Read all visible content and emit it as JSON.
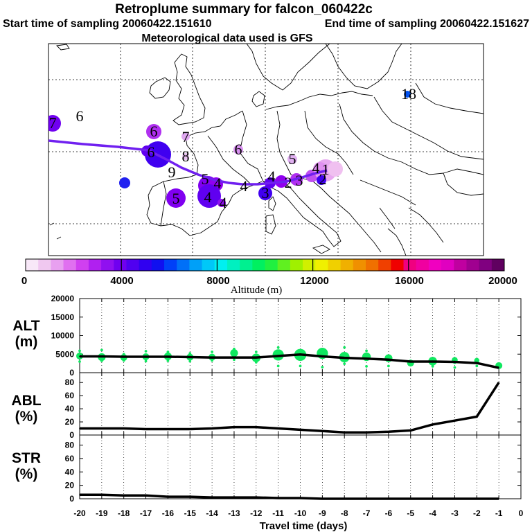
{
  "title": "Retroplume summary for falcon_060422c",
  "start_label": "Start time of sampling 20060422.151610",
  "end_label": "End time of sampling 20060422.151627",
  "met_label": "Meteorological data used is GFS",
  "colorbar": {
    "ticks": [
      "0",
      "4000",
      "8000",
      "12000",
      "16000",
      "20000"
    ],
    "label": "Altitude (m)",
    "colors": [
      "#f8e8f8",
      "#f0c8f0",
      "#e8a0f0",
      "#e070f0",
      "#d040f0",
      "#b020f0",
      "#9010f0",
      "#7000f0",
      "#5000f0",
      "#3000f0",
      "#1010f0",
      "#0040f8",
      "#0070f8",
      "#00a0f8",
      "#00c8f8",
      "#00f0f0",
      "#00f0c0",
      "#00f090",
      "#00f060",
      "#20f040",
      "#60f020",
      "#a0f000",
      "#d0f000",
      "#f0f000",
      "#f0d000",
      "#f0b000",
      "#f09000",
      "#f07000",
      "#f04000",
      "#f00000",
      "#f00080",
      "#f000a0",
      "#f000c0",
      "#e000c0",
      "#c000a0",
      "#a00090",
      "#800080",
      "#600060"
    ]
  },
  "map": {
    "day_labels": [
      {
        "text": "7",
        "color": "#8000f0"
      },
      {
        "text": "6",
        "color": "#9010f0"
      },
      {
        "text": "6",
        "color": "#b030f0"
      },
      {
        "text": "7",
        "color": "#e0a0f0"
      },
      {
        "text": "6",
        "color": "#5000f0"
      },
      {
        "text": "8",
        "color": "#e8c0f0"
      },
      {
        "text": "6",
        "color": "#d890f0"
      },
      {
        "text": "5",
        "color": "#e0a8f0"
      },
      {
        "text": "9",
        "color": "#d8a0f0"
      },
      {
        "text": "5",
        "color": "#b020f0"
      },
      {
        "text": "4",
        "color": "#a010f0"
      },
      {
        "text": "4",
        "color": "#7000f0"
      },
      {
        "text": "4",
        "color": "#a020f0"
      },
      {
        "text": "5",
        "color": "#a010f0"
      },
      {
        "text": "4",
        "color": "#8000f0"
      },
      {
        "text": "3",
        "color": "#5000f0"
      },
      {
        "text": "4",
        "color": "#7000f0"
      },
      {
        "text": "2",
        "color": "#c040f0"
      },
      {
        "text": "3",
        "color": "#c050f0"
      },
      {
        "text": "4",
        "color": "#e090f0"
      },
      {
        "text": "1",
        "color": "#e090f0"
      },
      {
        "text": "2",
        "color": "#7000f0"
      },
      {
        "text": "18",
        "color": "#0040f0"
      }
    ]
  },
  "panels": [
    {
      "name": "ALT",
      "unit": "(m)",
      "yticks": [
        "0",
        "5000",
        "10000",
        "15000",
        "20000"
      ]
    },
    {
      "name": "ABL",
      "unit": "(%)",
      "yticks": [
        "0",
        "20",
        "40",
        "60",
        "80"
      ]
    },
    {
      "name": "STR",
      "unit": "(%)",
      "yticks": [
        "0",
        "20",
        "40",
        "60",
        "80"
      ]
    }
  ],
  "xaxis": {
    "label": "Travel time (days)",
    "ticks": [
      "-20",
      "-19",
      "-18",
      "-17",
      "-16",
      "-15",
      "-14",
      "-13",
      "-12",
      "-11",
      "-10",
      "-9",
      "-8",
      "-7",
      "-6",
      "-5",
      "-4",
      "-3",
      "-2",
      "-1",
      "0"
    ]
  },
  "chart_data": [
    {
      "type": "line",
      "title": "ALT",
      "ylabel": "ALT (m)",
      "xlabel": "Travel time (days)",
      "x": [
        -20,
        -19,
        -18,
        -17,
        -16,
        -15,
        -14,
        -13,
        -12,
        -11,
        -10,
        -9,
        -8,
        -7,
        -6,
        -5,
        -4,
        -3,
        -2,
        -1
      ],
      "values": [
        4400,
        4400,
        4300,
        4300,
        4300,
        4200,
        4100,
        4100,
        4100,
        4500,
        4900,
        4400,
        4000,
        3800,
        3500,
        3000,
        3000,
        2900,
        2600,
        1300
      ],
      "ylim": [
        0,
        20000
      ],
      "xlim": [
        -20,
        0
      ],
      "scatter": {
        "x": [
          -20,
          -20,
          -20,
          -19,
          -19,
          -19,
          -18,
          -18,
          -18,
          -17,
          -17,
          -17,
          -16,
          -16,
          -16,
          -15,
          -15,
          -15,
          -14,
          -14,
          -14,
          -13,
          -13,
          -13,
          -12,
          -12,
          -12,
          -11,
          -11,
          -11,
          -10,
          -10,
          -10,
          -9,
          -9,
          -9,
          -8,
          -8,
          -8,
          -7,
          -7,
          -7,
          -6,
          -6,
          -6,
          -5,
          -5,
          -4,
          -4,
          -3,
          -3,
          -3,
          -2,
          -2,
          -1,
          -1
        ],
        "y": [
          5900,
          4500,
          3000,
          6100,
          4200,
          3200,
          5000,
          4100,
          3300,
          5800,
          4300,
          3100,
          5600,
          4400,
          3200,
          5200,
          4200,
          3100,
          5600,
          4200,
          3300,
          6400,
          5300,
          3500,
          5600,
          4000,
          2800,
          6800,
          4800,
          1800,
          5800,
          4800,
          1800,
          4900,
          5200,
          1500,
          6800,
          4200,
          2400,
          5900,
          4300,
          1700,
          4100,
          3900,
          1800,
          3100,
          2600,
          3100,
          1700,
          3400,
          2800,
          1400,
          3300,
          1800,
          1900,
          1400
        ],
        "size": [
          3,
          8,
          3,
          3,
          9,
          3,
          3,
          8,
          3,
          3,
          8,
          3,
          3,
          9,
          3,
          3,
          8,
          3,
          3,
          8,
          3,
          3,
          9,
          3,
          3,
          10,
          3,
          3,
          13,
          3,
          3,
          14,
          3,
          3,
          13,
          3,
          3,
          12,
          3,
          3,
          10,
          3,
          3,
          9,
          3,
          3,
          8,
          10,
          3,
          7,
          4,
          3,
          6,
          3,
          8,
          3
        ]
      }
    },
    {
      "type": "line",
      "title": "ABL",
      "ylabel": "ABL (%)",
      "x": [
        -20,
        -19,
        -18,
        -17,
        -16,
        -15,
        -14,
        -13,
        -12,
        -11,
        -10,
        -9,
        -8,
        -7,
        -6,
        -5,
        -4,
        -3,
        -2,
        -1
      ],
      "values": [
        10,
        10,
        10,
        9,
        9,
        9,
        10,
        12,
        12,
        10,
        8,
        6,
        4,
        4,
        5,
        7,
        16,
        22,
        28,
        80
      ],
      "ylim": [
        0,
        95
      ],
      "xlim": [
        -20,
        0
      ]
    },
    {
      "type": "line",
      "title": "STR",
      "ylabel": "STR (%)",
      "x": [
        -20,
        -19,
        -18,
        -17,
        -16,
        -15,
        -14,
        -13,
        -12,
        -11,
        -10,
        -9,
        -8,
        -7,
        -6,
        -5,
        -4,
        -3,
        -2,
        -1
      ],
      "values": [
        6,
        6,
        5,
        5,
        3,
        3,
        2,
        2,
        2,
        1,
        1,
        0,
        0,
        0,
        0,
        0,
        0,
        0,
        0,
        0
      ],
      "ylim": [
        0,
        95
      ],
      "xlim": [
        -20,
        0
      ]
    }
  ]
}
